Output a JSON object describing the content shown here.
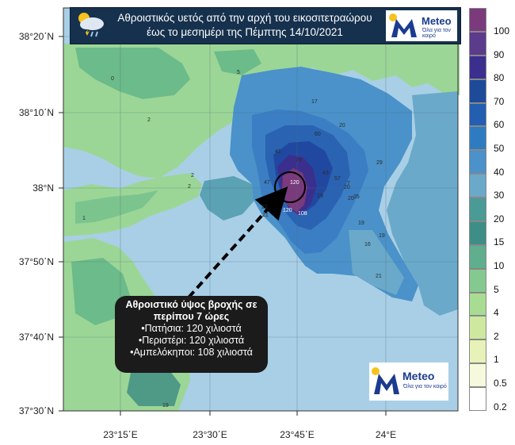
{
  "title": {
    "line1": "Αθροιστικός υετός από την αρχή του εικοσιτετραώρου",
    "line2": "έως το μεσημέρι της Πέμπτης 14/10/2021"
  },
  "brand": {
    "name": "Meteo",
    "tagline": "Όλα για τον καιρό"
  },
  "lat_labels": [
    "38°20΄N",
    "38°10΄N",
    "38°N",
    "37°50΄N",
    "37°40΄N",
    "37°30΄N"
  ],
  "lon_labels": [
    "23°15΄E",
    "23°30΄E",
    "23°45΄E",
    "24°E"
  ],
  "colorbar": {
    "labels": [
      "100",
      "90",
      "80",
      "70",
      "60",
      "50",
      "40",
      "30",
      "20",
      "15",
      "10",
      "5",
      "4",
      "2",
      "1",
      "0.5",
      "0.2"
    ],
    "colors": [
      "#7a3a7c",
      "#5c3a8c",
      "#3a2f8e",
      "#1e4a9a",
      "#235eb0",
      "#2f7bc2",
      "#4a92c9",
      "#6aa9c9",
      "#4a9a96",
      "#3d8e86",
      "#5fae8e",
      "#84c98f",
      "#a9dc93",
      "#cde9a0",
      "#e7f2b8",
      "#f6f9dc",
      "#ffffff"
    ]
  },
  "contour_labels": [
    "0",
    "2",
    "2",
    "5",
    "2",
    "1",
    "17",
    "20",
    "41",
    "47",
    "73",
    "60",
    "43",
    "22",
    "21",
    "20",
    "20",
    "29",
    "7",
    "35",
    "19",
    "16",
    "19",
    "21",
    "57",
    "19",
    "120",
    "120",
    "108",
    "19"
  ],
  "callout": {
    "title": "Αθροιστικό ύψος βροχής σε περίπου 7 ώρες",
    "lines": [
      "•Πατήσια: 120 χιλιοστά",
      "•Περιστέρι: 120 χιλιοστά",
      "•Αμπελόκηποι: 108 χιλιοστά"
    ]
  },
  "colors": {
    "header_bg": "#16314e",
    "sea": "#a9cfe6",
    "callout_bg": "#1b1b1b",
    "brand_blue": "#1a3b8f",
    "sun": "#f6c21c"
  }
}
